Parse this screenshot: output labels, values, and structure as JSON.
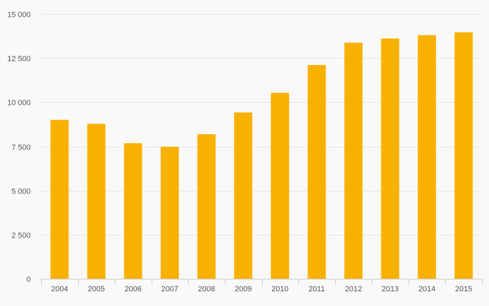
{
  "chart_data": {
    "type": "bar",
    "title": "",
    "xlabel": "",
    "ylabel": "",
    "categories": [
      "2004",
      "2005",
      "2006",
      "2007",
      "2008",
      "2009",
      "2010",
      "2011",
      "2012",
      "2013",
      "2014",
      "2015"
    ],
    "values": [
      9000,
      8780,
      7680,
      7480,
      8190,
      9420,
      10530,
      12110,
      13370,
      13610,
      13800,
      13960
    ],
    "ylim": [
      0,
      15000
    ],
    "yticks": [
      0,
      2500,
      5000,
      7500,
      10000,
      12500,
      15000
    ],
    "ytick_labels": [
      "0",
      "2 500",
      "5 000",
      "7 500",
      "10 000",
      "12 500",
      "15 000"
    ],
    "grid": true,
    "legend": "none",
    "bar_color": "#f9b100",
    "grid_color": "#e6e6e6",
    "axis_color": "#cccccc",
    "text_color": "#555555"
  }
}
